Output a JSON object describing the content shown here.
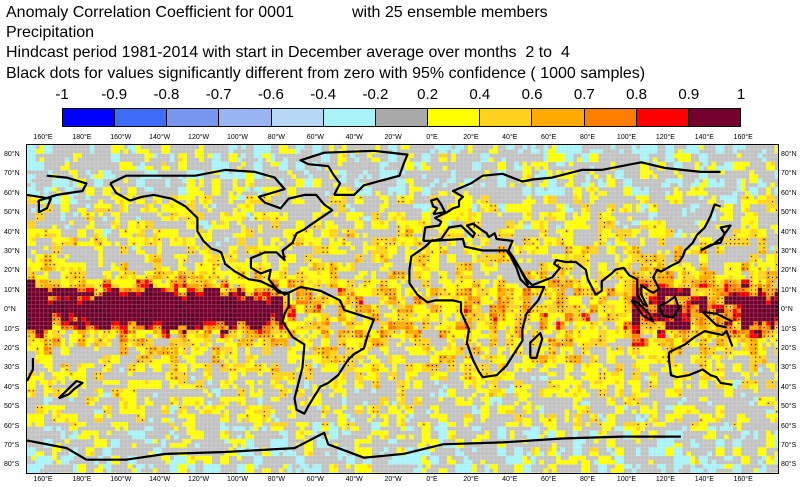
{
  "title": {
    "line1_left": "Anomaly Correlation Coefficient for 0001",
    "line1_right": "with 25 ensemble members",
    "line2": "Precipitation",
    "line3": "Hindcast period 1981-2014 with start in December average over months  2 to  4",
    "line4": "Black dots for values significantly different from zero with 95% confidence ( 1000 samples)"
  },
  "colorbar": {
    "labels": [
      "-1",
      "-0.9",
      "-0.8",
      "-0.7",
      "-0.6",
      "-0.4",
      "-0.2",
      "0.2",
      "0.4",
      "0.6",
      "0.7",
      "0.8",
      "0.9",
      "1"
    ],
    "colors": [
      "#0000ff",
      "#3d6cf6",
      "#7896ee",
      "#98b4f2",
      "#b6d7f6",
      "#a8f3f8",
      "#a9a9a9",
      "#ffff00",
      "#ffd21e",
      "#ffaa00",
      "#ff7e00",
      "#ff0000",
      "#74002e"
    ]
  },
  "map": {
    "lon_labels": [
      "160°E",
      "180°E",
      "160°W",
      "140°W",
      "120°W",
      "100°W",
      "80°W",
      "60°W",
      "40°W",
      "20°W",
      "0°E",
      "20°E",
      "40°E",
      "60°E",
      "80°E",
      "100°E",
      "120°E",
      "140°E",
      "160°E"
    ],
    "lat_labels": [
      "80°N",
      "70°N",
      "60°N",
      "50°N",
      "40°N",
      "30°N",
      "20°N",
      "10°N",
      "0°N",
      "10°S",
      "20°S",
      "30°S",
      "40°S",
      "50°S",
      "60°S",
      "70°S",
      "80°S"
    ],
    "background_color": "#c2c2c2",
    "coast_color": "#000000"
  }
}
